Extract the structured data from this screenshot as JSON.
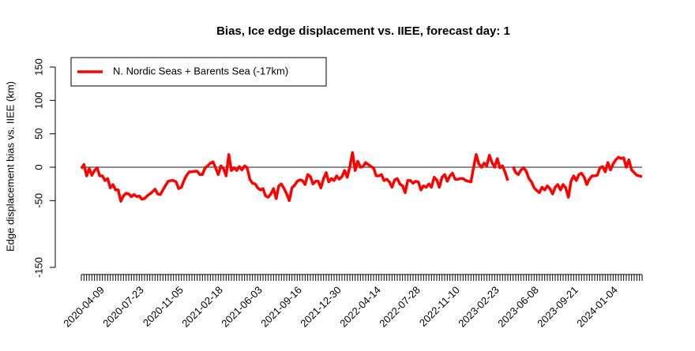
{
  "chart_data": {
    "type": "line",
    "title": "Bias, Ice edge displacement vs. IIEE, forecast day: 1",
    "y_label": "Edge displacement bias vs. IIEE (km)",
    "ylim": [
      -150,
      150
    ],
    "yticks": [
      -150,
      -50,
      0,
      50,
      100,
      150
    ],
    "hline": 0,
    "legend": "top-left",
    "xticks": [
      "2020-04-09",
      "2020-07-23",
      "2020-11-05",
      "2021-02-18",
      "2021-06-03",
      "2021-09-16",
      "2021-12-30",
      "2022-04-14",
      "2022-07-28",
      "2022-11-10",
      "2023-02-23",
      "2023-06-08",
      "2023-09-21",
      "2024-01-04"
    ],
    "x": [
      "2020-02-20",
      "2020-02-27",
      "2020-03-05",
      "2020-03-12",
      "2020-03-19",
      "2020-03-26",
      "2020-04-02",
      "2020-04-09",
      "2020-04-16",
      "2020-04-23",
      "2020-04-30",
      "2020-05-07",
      "2020-05-14",
      "2020-05-21",
      "2020-05-28",
      "2020-06-04",
      "2020-06-11",
      "2020-06-18",
      "2020-06-25",
      "2020-07-02",
      "2020-07-09",
      "2020-07-16",
      "2020-07-23",
      "2020-07-30",
      "2020-08-06",
      "2020-08-13",
      "2020-08-20",
      "2020-08-27",
      "2020-09-03",
      "2020-09-10",
      "2020-09-17",
      "2020-09-24",
      "2020-10-01",
      "2020-10-08",
      "2020-10-15",
      "2020-10-22",
      "2020-10-29",
      "2020-11-05",
      "2020-11-12",
      "2020-11-19",
      "2020-11-26",
      "2020-12-03",
      "2020-12-10",
      "2020-12-17",
      "2020-12-24",
      "2020-12-31",
      "2021-01-07",
      "2021-01-14",
      "2021-01-21",
      "2021-01-28",
      "2021-02-04",
      "2021-02-11",
      "2021-02-18",
      "2021-02-25",
      "2021-03-04",
      "2021-03-11",
      "2021-03-18",
      "2021-03-25",
      "2021-04-01",
      "2021-04-08",
      "2021-04-15",
      "2021-04-22",
      "2021-04-29",
      "2021-05-06",
      "2021-05-13",
      "2021-05-20",
      "2021-05-27",
      "2021-06-03",
      "2021-06-10",
      "2021-06-17",
      "2021-06-24",
      "2021-07-01",
      "2021-07-08",
      "2021-07-15",
      "2021-07-22",
      "2021-07-29",
      "2021-08-05",
      "2021-08-12",
      "2021-08-19",
      "2021-08-26",
      "2021-09-02",
      "2021-09-09",
      "2021-09-16",
      "2021-09-23",
      "2021-09-30",
      "2021-10-07",
      "2021-10-14",
      "2021-10-21",
      "2021-10-28",
      "2021-11-04",
      "2021-11-11",
      "2021-11-18",
      "2021-11-25",
      "2021-12-02",
      "2021-12-09",
      "2021-12-16",
      "2021-12-23",
      "2021-12-30",
      "2022-01-06",
      "2022-01-13",
      "2022-01-20",
      "2022-01-27",
      "2022-02-03",
      "2022-02-10",
      "2022-02-17",
      "2022-02-24",
      "2022-03-03",
      "2022-03-10",
      "2022-03-17",
      "2022-03-24",
      "2022-03-31",
      "2022-04-07",
      "2022-04-14",
      "2022-04-21",
      "2022-04-28",
      "2022-05-05",
      "2022-05-12",
      "2022-05-19",
      "2022-05-26",
      "2022-06-02",
      "2022-06-09",
      "2022-06-16",
      "2022-06-23",
      "2022-06-30",
      "2022-07-07",
      "2022-07-14",
      "2022-07-21",
      "2022-07-28",
      "2022-08-04",
      "2022-08-11",
      "2022-08-18",
      "2022-08-25",
      "2022-09-01",
      "2022-09-08",
      "2022-09-15",
      "2022-09-22",
      "2022-09-29",
      "2022-10-06",
      "2022-10-13",
      "2022-10-20",
      "2022-10-27",
      "2022-11-03",
      "2022-11-10",
      "2022-11-17",
      "2022-11-24",
      "2022-12-01",
      "2022-12-08",
      "2022-12-15",
      "2022-12-22",
      "2022-12-29",
      "2023-01-05",
      "2023-01-12",
      "2023-01-19",
      "2023-01-26",
      "2023-02-02",
      "2023-02-09",
      "2023-02-16",
      "2023-02-23",
      "2023-03-02",
      "2023-03-09",
      "2023-03-16",
      "2023-03-23",
      "2023-03-30",
      "2023-04-06",
      "2023-04-13",
      "2023-04-20",
      "2023-04-27",
      "2023-05-04",
      "2023-05-11",
      "2023-05-18",
      "2023-05-25",
      "2023-06-01",
      "2023-06-08",
      "2023-06-15",
      "2023-06-22",
      "2023-06-29",
      "2023-07-06",
      "2023-07-13",
      "2023-07-20",
      "2023-07-27",
      "2023-08-03",
      "2023-08-10",
      "2023-08-17",
      "2023-08-24",
      "2023-08-31",
      "2023-09-07",
      "2023-09-14",
      "2023-09-21",
      "2023-09-28",
      "2023-10-05",
      "2023-10-12",
      "2023-10-19",
      "2023-10-26",
      "2023-11-02",
      "2023-11-09",
      "2023-11-16",
      "2023-11-23",
      "2023-11-30",
      "2023-12-07",
      "2023-12-14",
      "2023-12-21",
      "2023-12-28",
      "2024-01-04",
      "2024-01-11",
      "2024-01-18",
      "2024-01-25",
      "2024-02-01",
      "2024-02-08",
      "2024-02-15",
      "2024-02-22",
      "2024-02-29",
      "2024-03-07",
      "2024-03-14",
      "2024-03-21"
    ],
    "series": [
      {
        "name": "N. Nordic Seas + Barents Sea (-17km)",
        "color": "#ff0000",
        "values": [
          -2,
          4,
          -13,
          -2,
          -12,
          -5,
          -1,
          -13,
          -13,
          -20,
          -17,
          -31,
          -26,
          -34,
          -34,
          -51,
          -43,
          -39,
          -40,
          -44,
          -41,
          -44,
          -43,
          -48,
          -47,
          -43,
          -40,
          -37,
          -33,
          -40,
          -41,
          -34,
          -27,
          -21,
          -20,
          -20,
          -22,
          -32,
          -30,
          -20,
          -12,
          -7,
          -7,
          -6,
          -6,
          -11,
          -11,
          -1,
          2,
          6,
          8,
          -1,
          -11,
          2,
          -2,
          -13,
          19,
          -5,
          -1,
          -5,
          1,
          -4,
          2,
          -1,
          -18,
          -24,
          -25,
          -31,
          -34,
          -32,
          -43,
          -45,
          -40,
          -32,
          -47,
          -28,
          -25,
          -32,
          -40,
          -50,
          -31,
          -27,
          -21,
          -19,
          -20,
          -26,
          -11,
          -14,
          -25,
          -21,
          -21,
          -31,
          -17,
          -8,
          -22,
          -17,
          -20,
          -13,
          -18,
          -14,
          -5,
          -15,
          1,
          22,
          -5,
          9,
          0,
          1,
          7,
          4,
          1,
          -1,
          -13,
          -13,
          -11,
          -20,
          -18,
          -22,
          -30,
          -19,
          -17,
          -25,
          -28,
          -38,
          -20,
          -20,
          -24,
          -21,
          -22,
          -34,
          -28,
          -30,
          -25,
          -30,
          -15,
          -19,
          -30,
          -15,
          -11,
          -21,
          -13,
          -9,
          -18,
          -18,
          -17,
          -17,
          -20,
          -21,
          -22,
          0,
          19,
          5,
          0,
          6,
          2,
          18,
          7,
          0,
          13,
          -1,
          2,
          -8,
          -20,
          null,
          1,
          -8,
          -11,
          -4,
          -1,
          -6,
          -17,
          -22,
          -31,
          -35,
          -38,
          -30,
          -34,
          -28,
          -32,
          -40,
          -30,
          -26,
          -34,
          -26,
          -31,
          -45,
          -21,
          -13,
          -20,
          -11,
          -9,
          -15,
          -26,
          -18,
          -13,
          -13,
          -12,
          -1,
          1,
          -7,
          7,
          -4,
          5,
          11,
          15,
          13,
          14,
          0,
          11,
          -4,
          -8,
          -12,
          -13,
          -14
        ]
      }
    ]
  }
}
